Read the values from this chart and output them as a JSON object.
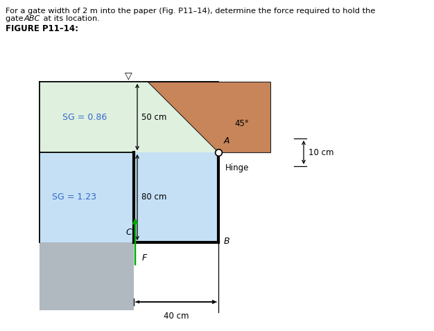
{
  "title_line1": "For a gate width of 2 m into the paper (Fig. P11–14), determine the force required to hold the",
  "title_line2_pre": "gate ",
  "title_line2_italic": "ABC",
  "title_line2_post": " at its location.",
  "figure_label": "FIGURE P11–14:",
  "sg1_label": "SG = 0.86",
  "sg2_label": "SG = 1.23",
  "dim_50cm": "50 cm",
  "dim_80cm": "80 cm",
  "dim_40cm": "40 cm",
  "dim_10cm": "10 cm",
  "label_A": "A",
  "label_B": "B",
  "label_C": "C",
  "label_F": "F",
  "label_hinge": "Hinge",
  "label_45": "45°",
  "color_fluid1": "#dff0df",
  "color_fluid2": "#c5e0f5",
  "color_ground": "#b0b8c0",
  "color_triangle": "#c8855a",
  "color_force_arrow": "#00aa00",
  "color_text_blue": "#3366cc"
}
